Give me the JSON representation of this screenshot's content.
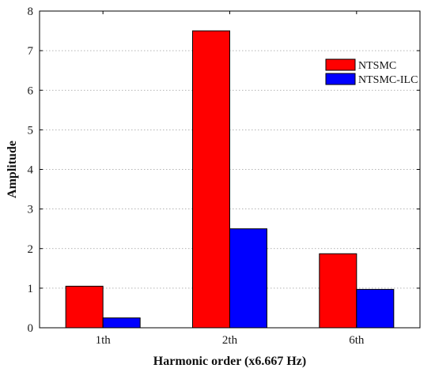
{
  "chart_data": {
    "type": "bar",
    "categories": [
      "1th",
      "2th",
      "6th"
    ],
    "series": [
      {
        "name": "NTSMC",
        "values": [
          1.05,
          7.5,
          1.87
        ],
        "color": "#ff0000"
      },
      {
        "name": "NTSMC-ILC",
        "values": [
          0.25,
          2.5,
          0.97
        ],
        "color": "#0000ff"
      }
    ],
    "title": "",
    "xlabel": "Harmonic order (x6.667 Hz)",
    "ylabel": "Amplitude",
    "ylim": [
      0,
      8
    ],
    "yticks": [
      "0",
      "1",
      "2",
      "3",
      "4",
      "5",
      "6",
      "7",
      "8"
    ],
    "grid": "horizontal dotted",
    "legend_position": "top-right"
  }
}
